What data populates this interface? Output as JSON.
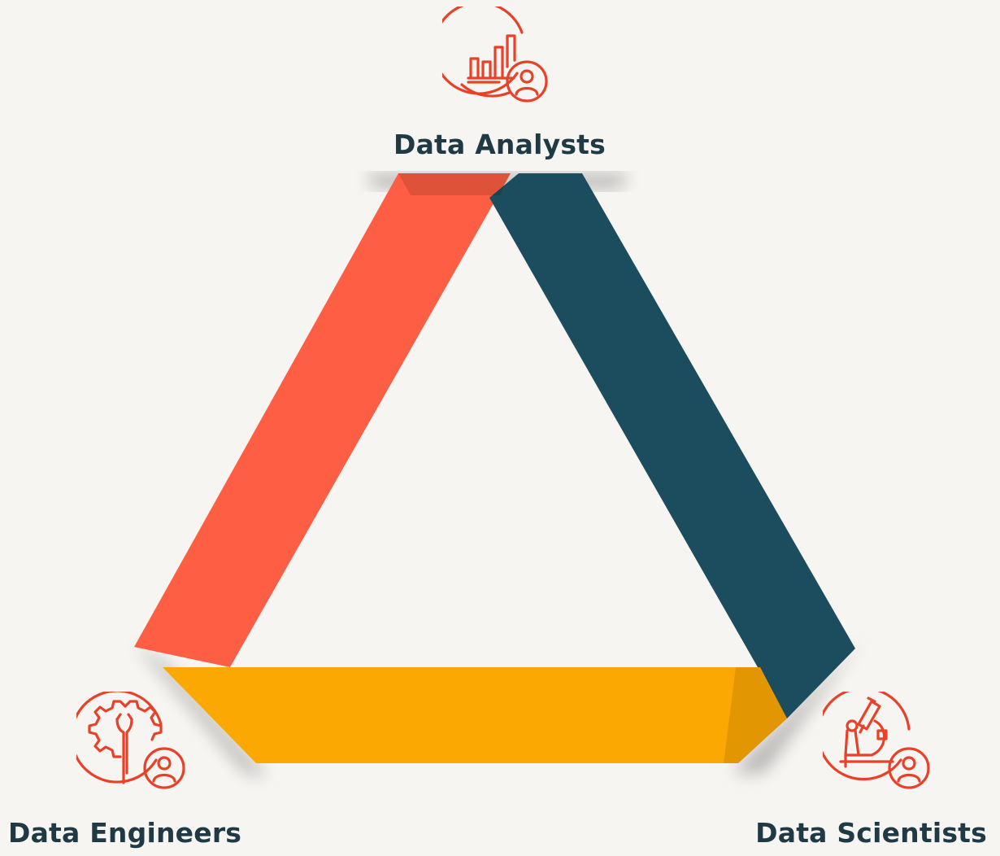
{
  "nodes": {
    "analysts": {
      "label": "Data Analysts",
      "icon": "chart-person-icon"
    },
    "engineers": {
      "label": "Data Engineers",
      "icon": "gear-wrench-person-icon"
    },
    "scientists": {
      "label": "Data Scientists",
      "icon": "microscope-person-icon"
    }
  },
  "colors": {
    "background": "#f7f5f2",
    "left_band": "#fe5e43",
    "right_band": "#1c4d5e",
    "bottom_band": "#fca802",
    "icon_stroke": "#e8412a",
    "label_text": "#1f3a44"
  }
}
